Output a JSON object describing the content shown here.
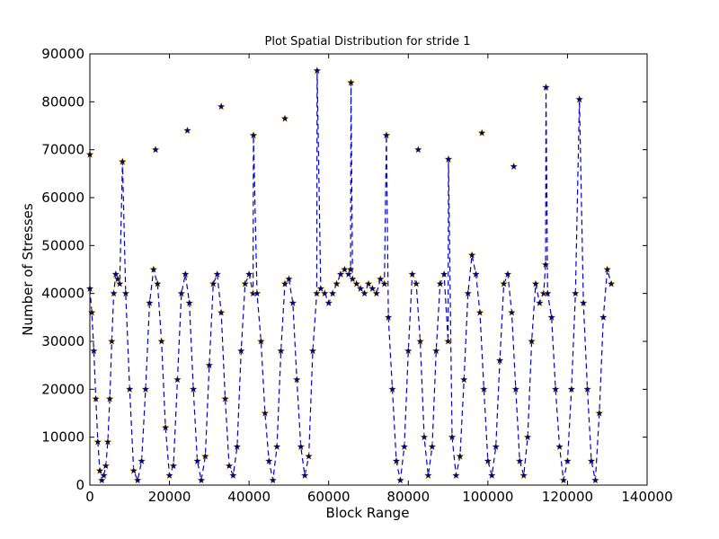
{
  "chart_data": {
    "type": "line",
    "title": "Plot Spatial Distribution for stride 1",
    "xlabel": "Block Range",
    "ylabel": "Number of Stresses",
    "xlim": [
      0,
      140000
    ],
    "ylim": [
      0,
      90000
    ],
    "xticks": [
      0,
      20000,
      40000,
      60000,
      80000,
      100000,
      120000,
      140000
    ],
    "yticks": [
      0,
      10000,
      20000,
      30000,
      40000,
      50000,
      60000,
      70000,
      80000,
      90000
    ],
    "grid": false,
    "line_color": "#0000cc",
    "line_style": "dashed",
    "marker": "star",
    "marker_fill": "#00007f",
    "marker_edge": "#ffd700",
    "series": [
      {
        "x": [
          0,
          500,
          1000,
          1500,
          2000,
          2500,
          3000,
          3500,
          4000,
          4500,
          5000,
          5500,
          6000,
          6500,
          7000,
          7500,
          8200,
          9000,
          10000,
          11000,
          12000,
          13000,
          14000,
          15000,
          16000,
          17000,
          18000,
          19000,
          20000,
          21000,
          22000,
          23000,
          24000,
          25000,
          26000,
          27000,
          28000,
          29000,
          30000,
          31000,
          32000,
          33000,
          34000,
          35000,
          36000,
          37000,
          38000,
          39000,
          40000,
          41000,
          41100,
          42000,
          43000,
          44000,
          45000,
          46000,
          47000,
          48000,
          49000,
          50000,
          51000,
          52000,
          53000,
          54000,
          55000,
          56000,
          57000,
          57100,
          58000,
          59000,
          60000,
          61000,
          62000,
          63000,
          64000,
          65000,
          65500,
          65600,
          66000,
          67000,
          68000,
          69000,
          70000,
          71000,
          72000,
          73000,
          74000,
          74500,
          75000,
          76000,
          77000,
          78000,
          79000,
          80000,
          81000,
          82000,
          83000,
          84000,
          85000,
          86000,
          87000,
          88000,
          89000,
          90000,
          90100,
          91000,
          92000,
          93000,
          94000,
          95000,
          96000,
          97000,
          98000,
          99000,
          100000,
          101000,
          102000,
          103000,
          104000,
          105000,
          106000,
          107000,
          108000,
          109000,
          110000,
          111000,
          112000,
          113000,
          114000,
          114500,
          114600,
          115000,
          116000,
          117000,
          118000,
          119000,
          120000,
          121000,
          122000,
          123000,
          124000,
          125000,
          126000,
          127000,
          128000,
          129000,
          130000,
          131000
        ],
        "y": [
          41000,
          36000,
          28000,
          18000,
          9000,
          3000,
          1000,
          2000,
          4000,
          9000,
          18000,
          30000,
          40000,
          44000,
          43000,
          42000,
          67500,
          40000,
          20000,
          3000,
          1000,
          5000,
          20000,
          38000,
          45000,
          42000,
          30000,
          12000,
          2000,
          4000,
          22000,
          40000,
          44000,
          38000,
          20000,
          5000,
          1000,
          6000,
          25000,
          42000,
          44000,
          36000,
          18000,
          4000,
          2000,
          8000,
          28000,
          42000,
          44000,
          40000,
          73000,
          40000,
          30000,
          15000,
          5000,
          1000,
          8000,
          28000,
          42000,
          43000,
          38000,
          22000,
          8000,
          2000,
          6000,
          28000,
          40000,
          86500,
          41000,
          40000,
          38000,
          40000,
          42000,
          44000,
          45000,
          44000,
          45000,
          84000,
          43000,
          42000,
          41000,
          40000,
          42000,
          41000,
          40000,
          43000,
          42000,
          73000,
          35000,
          20000,
          5000,
          1000,
          8000,
          28000,
          44000,
          42000,
          30000,
          10000,
          2000,
          8000,
          28000,
          42000,
          44000,
          30000,
          68000,
          10000,
          2000,
          6000,
          22000,
          40000,
          48000,
          44000,
          36000,
          20000,
          5000,
          2000,
          8000,
          26000,
          42000,
          44000,
          36000,
          20000,
          5000,
          2000,
          10000,
          30000,
          42000,
          38000,
          40000,
          46000,
          83000,
          40000,
          35000,
          20000,
          8000,
          1000,
          5000,
          20000,
          40000,
          80500,
          38000,
          20000,
          5000,
          1000,
          15000,
          35000,
          45000,
          42000
        ]
      }
    ],
    "outliers": {
      "x": [
        0,
        8200,
        16500,
        24500,
        33000,
        41100,
        49000,
        57100,
        65600,
        74500,
        82500,
        90100,
        98500,
        106500,
        114600,
        123000
      ],
      "y": [
        69000,
        67500,
        70000,
        74000,
        79000,
        73000,
        76500,
        86500,
        84000,
        73000,
        70000,
        68000,
        73500,
        66500,
        83000,
        80500
      ]
    }
  }
}
